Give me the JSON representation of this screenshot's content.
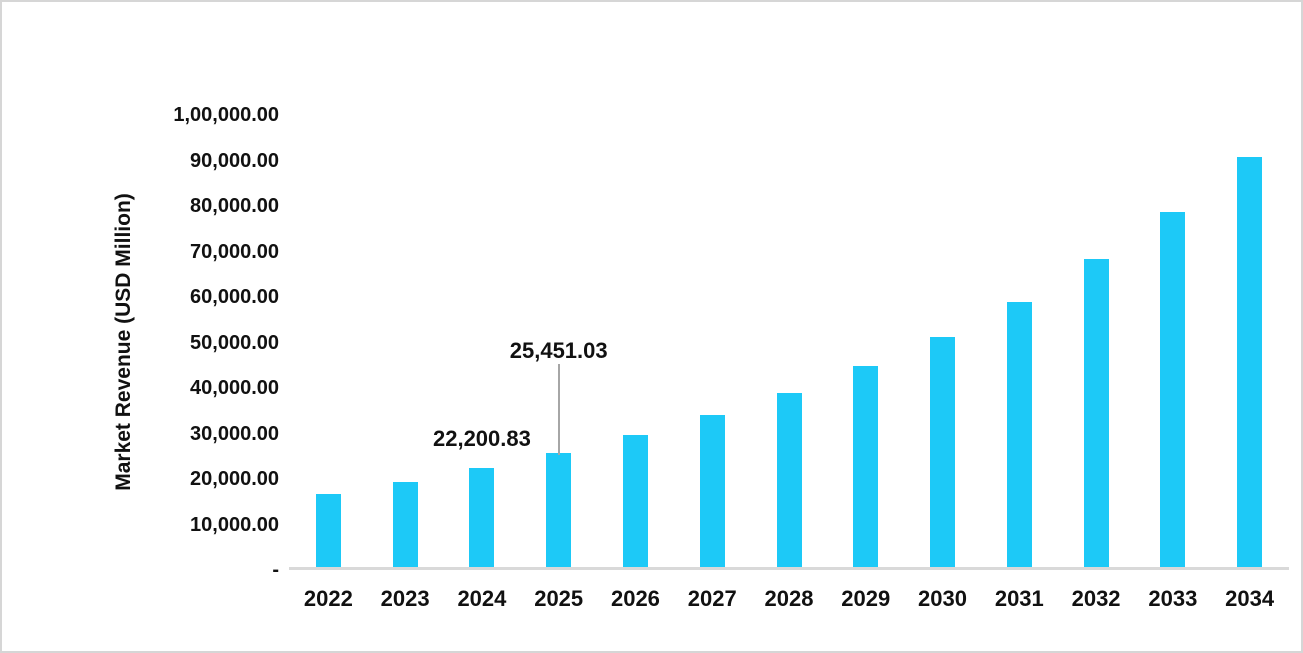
{
  "frame": {
    "background_color": "#FFFFFF",
    "border_color": "#D6D6D6"
  },
  "chart_data": {
    "type": "bar",
    "title": "",
    "xlabel": "",
    "ylabel": "Market Revenue (USD Million)",
    "categories": [
      "2022",
      "2023",
      "2024",
      "2025",
      "2026",
      "2027",
      "2028",
      "2029",
      "2030",
      "2031",
      "2032",
      "2033",
      "2034"
    ],
    "values": [
      16400,
      19100,
      22200.83,
      25451.03,
      29500,
      33900,
      38700,
      44700,
      51100,
      58700,
      68100,
      78400,
      90500
    ],
    "ylim": [
      0,
      100000
    ],
    "y_tick_step": 10000,
    "y_ticks": [
      "-",
      "10,000.00",
      "20,000.00",
      "30,000.00",
      "40,000.00",
      "50,000.00",
      "60,000.00",
      "70,000.00",
      "80,000.00",
      "90,000.00",
      "1,00,000.00"
    ],
    "data_labels": [
      {
        "category_index": 2,
        "text": "22,200.83",
        "leader_line": false
      },
      {
        "category_index": 3,
        "text": "25,451.03",
        "leader_line": true
      }
    ],
    "grid": "off",
    "legend": "none",
    "bar_color": "#1DC9F7",
    "axis_line_color": "#D9D9D9",
    "leader_line_color": "#A6A6A6",
    "text_color": "#111111"
  }
}
